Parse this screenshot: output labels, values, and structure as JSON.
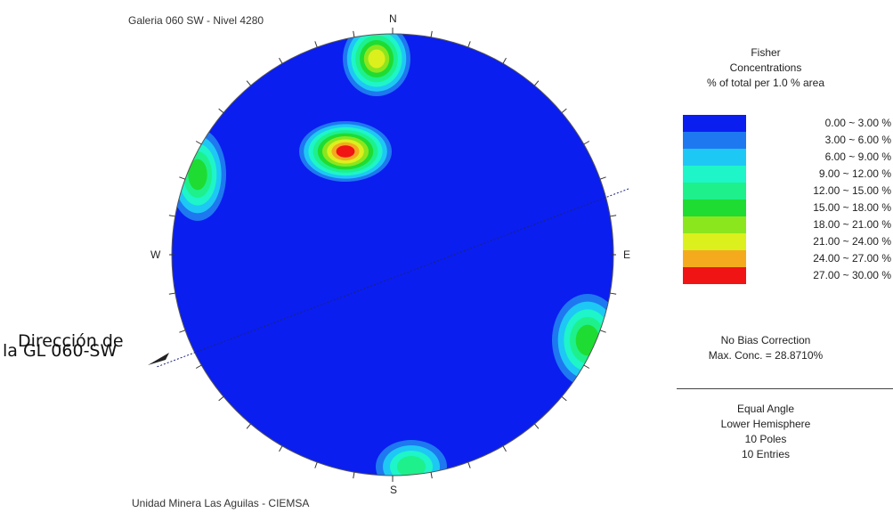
{
  "figure": {
    "top_title": "Galeria 060 SW - Nivel 4280",
    "bottom_title": "Unidad Minera Las Aguilas - CIEMSA",
    "compass": {
      "n": "N",
      "s": "S",
      "e": "E",
      "w": "W"
    },
    "annotation_line1": "Dirección de",
    "annotation_line2": "la GL 060-SW"
  },
  "legend": {
    "title1": "Fisher",
    "title2": "Concentrations",
    "title3": "% of total per 1.0 % area",
    "rows": [
      {
        "label": "0.00 ~  3.00 %",
        "color": "#0a1ef0"
      },
      {
        "label": "3.00 ~  6.00 %",
        "color": "#1e78f0"
      },
      {
        "label": "6.00 ~  9.00 %",
        "color": "#1ec8f5"
      },
      {
        "label": "9.00 ~ 12.00 %",
        "color": "#1ef5c8"
      },
      {
        "label": "12.00 ~ 15.00 %",
        "color": "#1ef08c"
      },
      {
        "label": "15.00 ~ 18.00 %",
        "color": "#1edc32"
      },
      {
        "label": "18.00 ~ 21.00 %",
        "color": "#8ce61e"
      },
      {
        "label": "21.00 ~ 24.00 %",
        "color": "#dcf01e"
      },
      {
        "label": "24.00 ~ 27.00 %",
        "color": "#f5aa1e"
      },
      {
        "label": "27.00 ~ 30.00 %",
        "color": "#f01414"
      }
    ],
    "bias": "No Bias Correction",
    "max_conc": "Max. Conc. = 28.8710%",
    "projection": "Equal Angle",
    "hemisphere": "Lower Hemisphere",
    "poles": "10 Poles",
    "entries": "10 Entries"
  }
}
